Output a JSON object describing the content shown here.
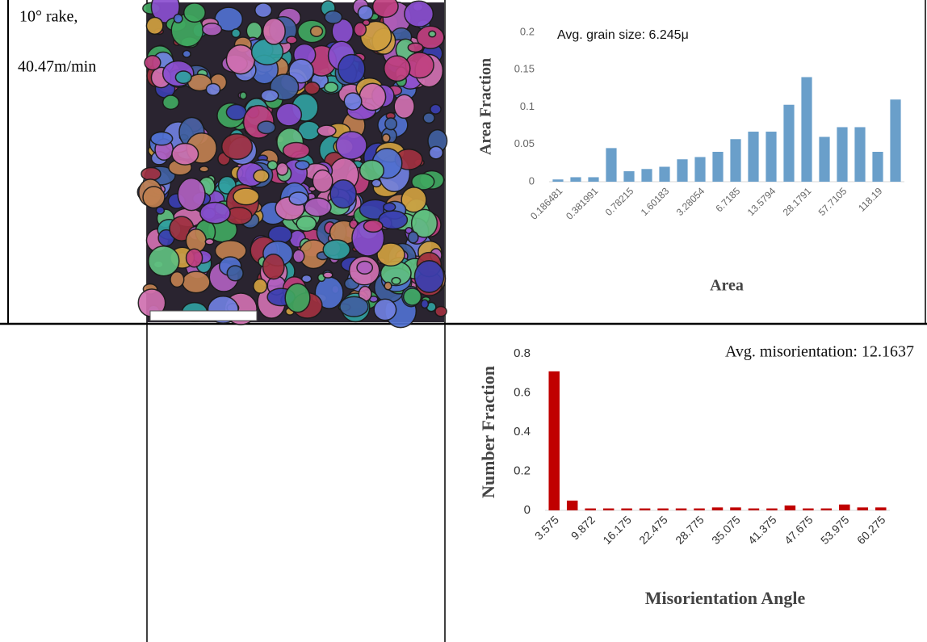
{
  "table": {
    "rows": [
      [
        "10° rake,",
        "40.47m/min"
      ]
    ]
  },
  "chart_data": [
    {
      "type": "bar",
      "title": "Avg. grain size: 6.245μ",
      "x_label": "Area",
      "y_label": "Area Fraction",
      "color": "#6a9fca",
      "categories": [
        "0.186481",
        null,
        "0.381991",
        null,
        "0.78215",
        null,
        "1.60183",
        null,
        "3.28054",
        null,
        "6.7185",
        null,
        "13.5794",
        null,
        "28.1791",
        null,
        "57.7105",
        null,
        "118.19",
        null
      ],
      "values": [
        0.003,
        0.006,
        0.006,
        0.045,
        0.014,
        0.017,
        0.02,
        0.03,
        0.033,
        0.04,
        0.057,
        0.067,
        0.067,
        0.103,
        0.14,
        0.06,
        0.073,
        0.073,
        0.04,
        0.11
      ],
      "ylim": [
        0,
        0.2
      ],
      "yticks": [
        0,
        0.05,
        0.1,
        0.15,
        0.2
      ],
      "grid": false
    },
    {
      "type": "bar",
      "title": "Avg. misorientation: 12.1637",
      "x_label": "Misorientation Angle",
      "y_label": "Number Fraction",
      "color": "#c00000",
      "categories": [
        "3.575",
        null,
        "9.872",
        null,
        "16.175",
        null,
        "22.475",
        null,
        "28.775",
        null,
        "35.075",
        null,
        "41.375",
        null,
        "47.675",
        null,
        "53.975",
        null,
        "60.275"
      ],
      "values": [
        0.71,
        0.05,
        0.01,
        0.01,
        0.01,
        0.01,
        0.01,
        0.01,
        0.01,
        0.015,
        0.015,
        0.01,
        0.01,
        0.025,
        0.01,
        0.01,
        0.03,
        0.015,
        0.015
      ],
      "ylim": [
        0,
        0.8
      ],
      "yticks": [
        0,
        0.2,
        0.4,
        0.6,
        0.8
      ],
      "grid": false
    }
  ]
}
